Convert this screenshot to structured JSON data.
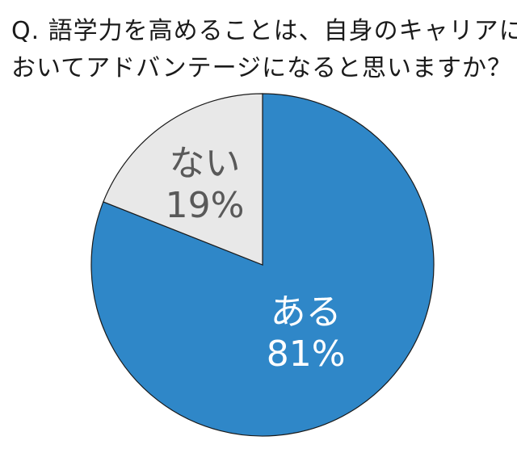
{
  "title": {
    "line1": "Q. 語学力を高めることは、自身のキャリアに",
    "line2": "おいてアドバンテージになると思いますか？"
  },
  "chart_data": {
    "type": "pie",
    "slices": [
      {
        "label": "ある",
        "value": 81,
        "value_label": "81%",
        "color": "#2f87c8",
        "text_color": "#ffffff"
      },
      {
        "label": "ない",
        "value": 19,
        "value_label": "19%",
        "color": "#e8e8e8",
        "text_color": "#595959"
      }
    ],
    "start_angle_deg": 0,
    "direction": "clockwise"
  }
}
